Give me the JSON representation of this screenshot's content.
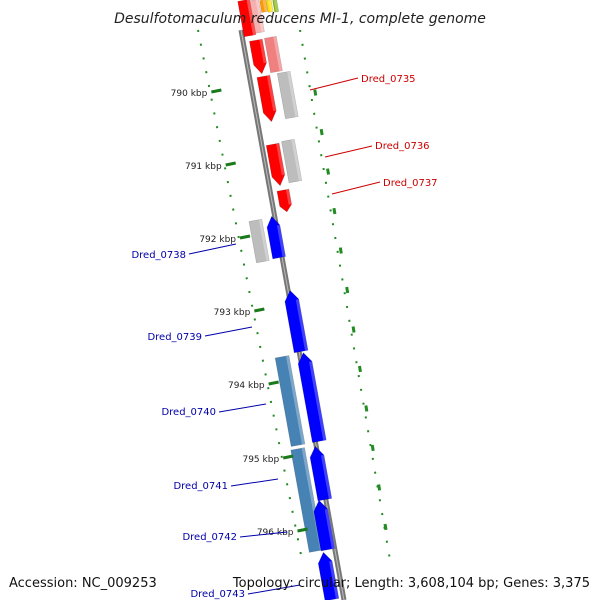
{
  "title": "Desulfotomaculum reducens MI-1, complete genome",
  "ticks": [
    "790 kbp",
    "791 kbp",
    "792 kbp",
    "793 kbp",
    "794 kbp",
    "795 kbp",
    "796 kbp"
  ],
  "genes": [
    {
      "name": "Dred_0735",
      "color": "#cc0000"
    },
    {
      "name": "Dred_0736",
      "color": "#cc0000"
    },
    {
      "name": "Dred_0737",
      "color": "#cc0000"
    },
    {
      "name": "Dred_0738",
      "color": "#0000aa"
    },
    {
      "name": "Dred_0739",
      "color": "#0000aa"
    },
    {
      "name": "Dred_0740",
      "color": "#0000aa"
    },
    {
      "name": "Dred_0741",
      "color": "#0000aa"
    },
    {
      "name": "Dred_0742",
      "color": "#0000aa"
    },
    {
      "name": "Dred_0743",
      "color": "#0000aa"
    }
  ],
  "colors": {
    "backbone": "#777777",
    "cds_reverse": "#ff0000",
    "cds_forward": "#0000ff",
    "orf": "#bdbdbd",
    "orf_pink": "#f08080",
    "gene_steelblue": "#4682b4",
    "gc_green": "#228b22",
    "top_orange": "#ff9900",
    "top_yellow": "#ffdd00"
  },
  "footer": {
    "accession": "Accession: NC_009253",
    "stats": "Topology: circular; Length: 3,608,104 bp; Genes: 3,375"
  }
}
